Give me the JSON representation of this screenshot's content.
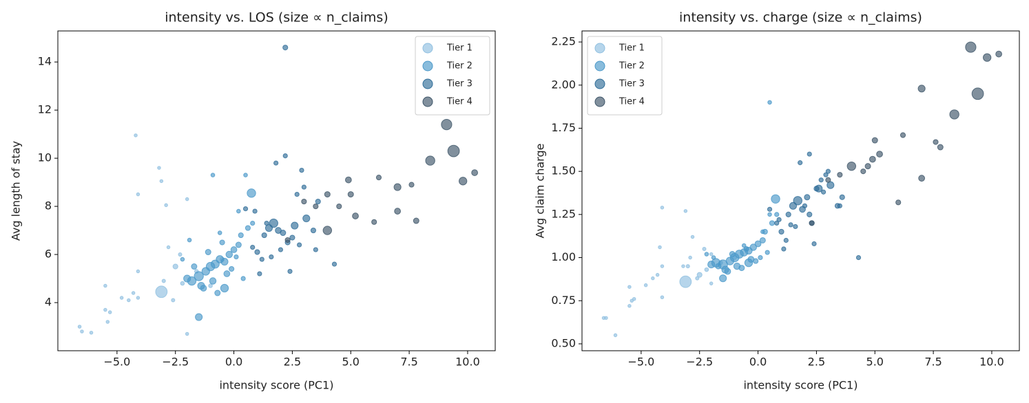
{
  "chart_data": [
    {
      "type": "scatter",
      "title": "intensity vs. LOS (size ∝ n_claims)",
      "x_label": "intensity score (PC1)",
      "y_label": "Avg length of stay",
      "legend": "upper right",
      "xlim": [
        -7.53,
        11.18
      ],
      "ylim": [
        2.0,
        15.29
      ],
      "xticks": [
        {
          "value": -5,
          "label": "−5.0"
        },
        {
          "value": -2.5,
          "label": "−2.5"
        },
        {
          "value": 0,
          "label": "0.0"
        },
        2.5,
        {
          "value": 5,
          "label": "5.0"
        },
        7.5,
        {
          "value": 10,
          "label": "10.0"
        }
      ],
      "yticks": [
        4,
        6,
        8,
        10,
        12,
        14
      ],
      "series": [
        {
          "name": "Tier 1",
          "color": "#8fbfe0",
          "x": [
            -6.6,
            -6.5,
            -6.1,
            -5.5,
            -5.4,
            -5.3,
            -5.5,
            -4.8,
            -4.5,
            -4.3,
            -4.1,
            -4.1,
            -4.1,
            -4.2,
            -3.2,
            -3.1,
            -2.9,
            -3.1,
            -2.5,
            -2.3,
            -2.0,
            -2.6,
            -3.0,
            -2.2,
            -1.6,
            -1.0,
            -0.5,
            -2.8,
            -2.0
          ],
          "values": [
            3.0,
            2.8,
            2.75,
            3.7,
            3.2,
            3.6,
            4.7,
            4.2,
            4.1,
            4.4,
            4.2,
            5.3,
            8.5,
            10.95,
            9.6,
            9.05,
            8.05,
            4.45,
            5.5,
            6.0,
            2.7,
            4.1,
            4.9,
            4.8,
            5.3,
            4.7,
            5.8,
            6.3,
            8.3
          ],
          "sizes": [
            8,
            8,
            8,
            8,
            8,
            8,
            8,
            8,
            8,
            8,
            8,
            8,
            8,
            8,
            8,
            8,
            8,
            110,
            20,
            10,
            8,
            10,
            10,
            12,
            12,
            12,
            15,
            8,
            8
          ]
        },
        {
          "name": "Tier 2",
          "color": "#4a98c9",
          "x": [
            -1.8,
            -1.5,
            -1.2,
            -1.0,
            -0.8,
            -0.6,
            -0.4,
            -0.2,
            0.0,
            0.2,
            -1.4,
            -0.9,
            -0.3,
            0.3,
            0.6,
            -1.7,
            -1.1,
            -0.5,
            0.1,
            0.8,
            -2.0,
            -1.3,
            -0.7,
            -0.1,
            0.4,
            -1.5,
            -0.4,
            0.75,
            -0.9,
            -1.9,
            0.2,
            -0.6,
            -2.2,
            0.5
          ],
          "values": [
            4.9,
            5.1,
            5.3,
            5.5,
            5.6,
            5.8,
            5.7,
            6.0,
            6.2,
            6.4,
            4.7,
            4.9,
            5.2,
            6.8,
            7.1,
            5.5,
            6.1,
            6.5,
            5.9,
            7.3,
            5.0,
            4.6,
            4.4,
            5.4,
            5.0,
            3.4,
            4.6,
            8.55,
            9.3,
            6.6,
            7.8,
            6.9,
            5.8,
            9.3
          ],
          "sizes": [
            60,
            70,
            50,
            60,
            55,
            45,
            40,
            35,
            30,
            25,
            40,
            35,
            30,
            20,
            20,
            25,
            25,
            20,
            15,
            15,
            40,
            30,
            25,
            20,
            15,
            40,
            50,
            60,
            12,
            12,
            12,
            12,
            12,
            12
          ]
        },
        {
          "name": "Tier 3",
          "color": "#2f6d98",
          "x": [
            0.8,
            1.0,
            1.3,
            1.5,
            1.7,
            1.9,
            2.1,
            2.3,
            2.5,
            1.2,
            1.6,
            2.0,
            2.4,
            2.8,
            3.1,
            3.4,
            1.8,
            2.2,
            2.7,
            3.0,
            3.6,
            0.9,
            1.4,
            2.6,
            2.2,
            3.5,
            4.3,
            1.1,
            0.5,
            2.9
          ],
          "values": [
            6.3,
            6.1,
            6.8,
            7.1,
            7.3,
            7.0,
            6.9,
            6.5,
            6.7,
            5.8,
            5.9,
            6.2,
            5.3,
            6.4,
            7.5,
            7.0,
            9.8,
            10.1,
            8.5,
            8.8,
            8.2,
            7.8,
            7.3,
            7.2,
            14.6,
            6.2,
            5.6,
            5.2,
            7.9,
            9.5
          ],
          "sizes": [
            15,
            20,
            20,
            40,
            60,
            30,
            25,
            20,
            20,
            15,
            15,
            15,
            15,
            15,
            40,
            20,
            15,
            15,
            15,
            15,
            20,
            15,
            15,
            40,
            20,
            15,
            15,
            15,
            15,
            15
          ]
        },
        {
          "name": "Tier 4",
          "color": "#3d5568",
          "x": [
            3.0,
            3.5,
            4.0,
            4.5,
            4.9,
            5.0,
            5.2,
            6.0,
            6.2,
            7.0,
            7.0,
            7.6,
            7.8,
            8.4,
            9.1,
            9.4,
            9.8,
            10.3,
            2.3,
            4.0
          ],
          "values": [
            8.2,
            8.0,
            7.0,
            8.0,
            9.1,
            8.5,
            7.6,
            7.35,
            9.2,
            8.8,
            7.8,
            8.9,
            7.4,
            9.9,
            11.4,
            10.3,
            9.05,
            9.4,
            6.6,
            8.5
          ],
          "sizes": [
            20,
            20,
            60,
            20,
            30,
            25,
            30,
            20,
            20,
            40,
            30,
            20,
            25,
            70,
            90,
            110,
            50,
            30,
            20,
            25
          ]
        }
      ]
    },
    {
      "type": "scatter",
      "title": "intensity vs. charge (size ∝ n_claims)",
      "x_label": "intensity score (PC1)",
      "y_label": "Avg claim charge",
      "legend": "upper left",
      "xlim": [
        -7.53,
        11.18
      ],
      "ylim": [
        0.46,
        2.314
      ],
      "xticks": [
        {
          "value": -5,
          "label": "−5.0"
        },
        {
          "value": -2.5,
          "label": "−2.5"
        },
        {
          "value": 0,
          "label": "0.0"
        },
        2.5,
        {
          "value": 5,
          "label": "5.0"
        },
        7.5,
        {
          "value": 10,
          "label": "10.0"
        }
      ],
      "yticks": [
        {
          "value": 0.5,
          "label": "0.50"
        },
        0.75,
        {
          "value": 1,
          "label": "1.00"
        },
        1.25,
        {
          "value": 1.5,
          "label": "1.50"
        },
        1.75,
        {
          "value": 2,
          "label": "2.00"
        },
        2.25
      ],
      "series": [
        {
          "name": "Tier 1",
          "color": "#8fbfe0",
          "x": [
            -6.6,
            -6.5,
            -6.1,
            -5.5,
            -5.4,
            -5.3,
            -5.5,
            -4.8,
            -4.5,
            -4.3,
            -4.1,
            -4.1,
            -4.1,
            -4.2,
            -3.2,
            -3.1,
            -2.9,
            -3.1,
            -2.5,
            -2.3,
            -2.0,
            -2.6,
            -3.0,
            -2.2,
            -1.6,
            -1.0,
            -0.5,
            -2.8,
            -2.0
          ],
          "values": [
            0.65,
            0.65,
            0.55,
            0.72,
            0.75,
            0.76,
            0.83,
            0.84,
            0.88,
            0.9,
            0.77,
            0.95,
            1.29,
            1.06,
            0.95,
            1.27,
            1.0,
            0.86,
            0.9,
            1.05,
            0.85,
            0.88,
            0.95,
            0.93,
            0.97,
            1.0,
            1.05,
            1.12,
            1.02
          ],
          "sizes": [
            8,
            8,
            8,
            8,
            8,
            8,
            8,
            8,
            8,
            8,
            8,
            8,
            8,
            8,
            8,
            8,
            8,
            110,
            20,
            10,
            8,
            10,
            10,
            12,
            12,
            12,
            15,
            8,
            8
          ]
        },
        {
          "name": "Tier 2",
          "color": "#4a98c9",
          "x": [
            -1.8,
            -1.5,
            -1.2,
            -1.0,
            -0.8,
            -0.6,
            -0.4,
            -0.2,
            0.0,
            0.2,
            -1.4,
            -0.9,
            -0.3,
            0.3,
            0.6,
            -1.7,
            -1.1,
            -0.5,
            0.1,
            0.8,
            -2.0,
            -1.3,
            -0.7,
            -0.1,
            0.4,
            -1.5,
            -0.4,
            0.75,
            0.5,
            -1.9,
            0.2,
            -0.6,
            -2.2,
            0.5
          ],
          "values": [
            0.97,
            0.96,
            0.98,
            1.0,
            1.02,
            1.03,
            1.04,
            1.06,
            1.08,
            1.1,
            0.93,
            0.95,
            0.99,
            1.15,
            1.2,
            0.95,
            1.02,
            1.05,
            1.0,
            1.25,
            0.96,
            0.92,
            0.94,
            0.98,
            1.03,
            0.88,
            0.97,
            1.34,
            1.9,
            1.0,
            1.15,
            1.07,
            1.02,
            1.25
          ],
          "sizes": [
            60,
            70,
            50,
            60,
            55,
            45,
            40,
            35,
            30,
            25,
            40,
            35,
            30,
            20,
            20,
            25,
            25,
            20,
            15,
            15,
            40,
            30,
            25,
            20,
            15,
            40,
            50,
            60,
            12,
            12,
            12,
            12,
            12,
            12
          ]
        },
        {
          "name": "Tier 3",
          "color": "#2f6d98",
          "x": [
            0.8,
            1.0,
            1.3,
            1.5,
            1.7,
            1.9,
            2.1,
            2.3,
            2.5,
            1.2,
            1.6,
            2.0,
            2.4,
            2.8,
            3.1,
            3.4,
            1.8,
            2.2,
            2.7,
            3.0,
            3.6,
            0.9,
            1.4,
            2.6,
            2.2,
            3.5,
            4.3,
            1.1,
            0.5,
            2.9
          ],
          "values": [
            1.2,
            1.15,
            1.25,
            1.3,
            1.33,
            1.28,
            1.35,
            1.2,
            1.4,
            1.1,
            1.18,
            1.3,
            1.08,
            1.38,
            1.42,
            1.3,
            1.55,
            1.6,
            1.45,
            1.5,
            1.35,
            1.22,
            1.19,
            1.4,
            1.25,
            1.3,
            1.0,
            1.05,
            1.28,
            1.48
          ],
          "sizes": [
            15,
            20,
            20,
            40,
            60,
            30,
            25,
            20,
            20,
            15,
            15,
            15,
            15,
            15,
            40,
            20,
            15,
            15,
            15,
            15,
            20,
            15,
            15,
            40,
            20,
            15,
            15,
            15,
            15,
            15
          ]
        },
        {
          "name": "Tier 4",
          "color": "#3d5568",
          "x": [
            3.0,
            3.5,
            4.0,
            4.5,
            4.9,
            5.0,
            5.2,
            6.0,
            6.2,
            7.0,
            7.0,
            7.6,
            7.8,
            8.4,
            9.1,
            9.4,
            9.8,
            10.3,
            2.3,
            4.7
          ],
          "values": [
            1.45,
            1.48,
            1.53,
            1.5,
            1.57,
            1.68,
            1.6,
            1.32,
            1.71,
            1.98,
            1.46,
            1.67,
            1.64,
            1.83,
            2.22,
            1.95,
            2.16,
            2.18,
            1.2,
            1.53
          ],
          "sizes": [
            20,
            20,
            60,
            20,
            30,
            25,
            30,
            20,
            20,
            40,
            30,
            20,
            25,
            70,
            90,
            110,
            50,
            30,
            20,
            25
          ]
        }
      ]
    }
  ]
}
